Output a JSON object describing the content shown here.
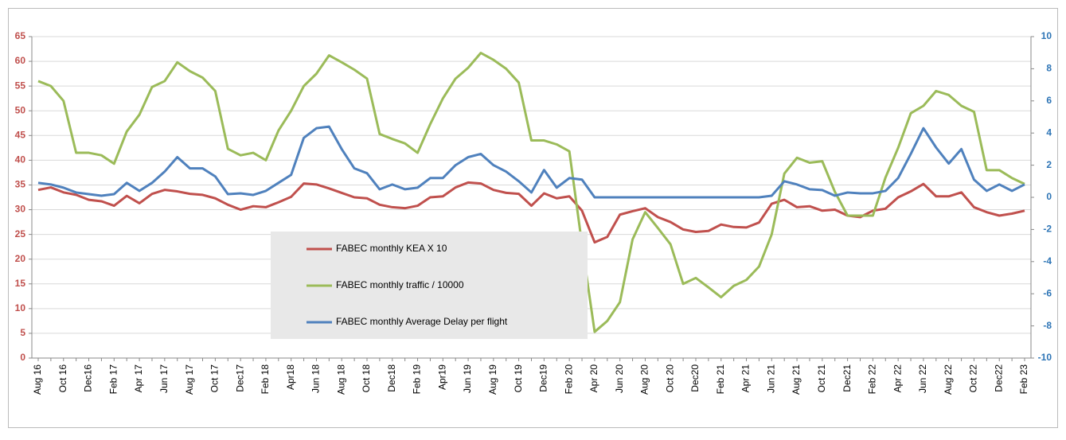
{
  "chart_data": {
    "type": "line",
    "categories": [
      "Aug 16",
      null,
      "Oct 16",
      null,
      "Dec16",
      null,
      "Feb 17",
      null,
      "Apr 17",
      null,
      "Jun 17",
      null,
      "Aug 17",
      null,
      "Oct 17",
      null,
      "Dec17",
      null,
      "Feb 18",
      null,
      "Apr18",
      null,
      "Jun 18",
      null,
      "Aug 18",
      null,
      "Oct 18",
      null,
      "Dec18",
      null,
      "Feb 19",
      null,
      "Apr19",
      null,
      "Jun 19",
      null,
      "Aug 19",
      null,
      "Oct 19",
      null,
      "Dec19",
      null,
      "Feb 20",
      null,
      "Apr 20",
      null,
      "Jun 20",
      null,
      "Aug 20",
      null,
      "Oct 20",
      null,
      "Dec20",
      null,
      "Feb 21",
      null,
      "Apr 21",
      null,
      "Jun 21",
      null,
      "Aug 21",
      null,
      "Oct 21",
      null,
      "Dec21",
      null,
      "Feb 22",
      null,
      "Apr 22",
      null,
      "Jun 22",
      null,
      "Aug 22",
      null,
      "Oct 22",
      null,
      "Dec22",
      null,
      "Feb 23"
    ],
    "series": [
      {
        "name": "FABEC monthly KEA X 10",
        "color": "#c0504d",
        "axis": "y",
        "values": [
          34,
          34.5,
          33.5,
          33,
          32,
          31.7,
          30.8,
          32.8,
          31.3,
          33.2,
          34,
          33.7,
          33.2,
          33,
          32.3,
          31,
          30,
          30.7,
          30.5,
          31.5,
          32.6,
          35.3,
          35.1,
          34.3,
          33.4,
          32.5,
          32.3,
          31,
          30.5,
          30.3,
          30.8,
          32.5,
          32.7,
          34.5,
          35.5,
          35.3,
          34,
          33.4,
          33.2,
          30.8,
          33.3,
          32.3,
          32.7,
          29.8,
          23.4,
          24.5,
          29,
          29.7,
          30.3,
          28.5,
          27.5,
          26,
          25.5,
          25.7,
          27,
          26.5,
          26.4,
          27.4,
          31.2,
          32,
          30.5,
          30.7,
          29.8,
          30,
          28.8,
          28.5,
          29.8,
          30.2,
          32.5,
          33.7,
          35.2,
          32.7,
          32.7,
          33.5,
          30.5,
          29.5,
          28.8,
          29.2,
          29.8
        ]
      },
      {
        "name": "FABEC monthly traffic / 10000",
        "color": "#9bbb59",
        "axis": "y",
        "values": [
          56,
          55,
          52,
          41.5,
          41.5,
          41,
          39.3,
          45.8,
          49.2,
          54.8,
          56,
          59.8,
          58,
          56.7,
          54,
          42.3,
          41,
          41.5,
          40,
          46,
          50,
          55,
          57.5,
          61.2,
          59.8,
          58.3,
          56.5,
          45.3,
          44.3,
          43.4,
          41.5,
          47.3,
          52.5,
          56.5,
          58.7,
          61.7,
          60.3,
          58.5,
          55.7,
          44,
          44,
          43.2,
          41.8,
          23,
          5.3,
          7.5,
          11.3,
          24,
          29.5,
          26.3,
          23,
          15,
          16.2,
          14.3,
          12.3,
          14.6,
          15.8,
          18.5,
          25,
          37.3,
          40.5,
          39.5,
          39.8,
          33.6,
          28.8,
          28.8,
          28.8,
          36.5,
          42.5,
          49.5,
          51,
          54,
          53.2,
          51,
          49.8,
          38,
          38,
          36.4,
          35.2
        ]
      },
      {
        "name": "FABEC monthly Average Delay per flight",
        "color": "#4f81bd",
        "axis": "y2",
        "values": [
          0.9,
          0.8,
          0.6,
          0.3,
          0.2,
          0.1,
          0.2,
          0.9,
          0.4,
          0.9,
          1.6,
          2.5,
          1.8,
          1.8,
          1.3,
          0.2,
          0.25,
          0.15,
          0.4,
          0.9,
          1.4,
          3.7,
          4.3,
          4.4,
          3.0,
          1.8,
          1.5,
          0.5,
          0.8,
          0.5,
          0.6,
          1.2,
          1.2,
          2.0,
          2.5,
          2.7,
          2.0,
          1.6,
          1.0,
          0.3,
          1.7,
          0.6,
          1.2,
          1.1,
          0,
          0,
          0,
          0,
          0,
          0,
          0,
          0,
          0,
          0,
          0,
          0,
          0,
          0,
          0.1,
          1.0,
          0.8,
          0.5,
          0.45,
          0.1,
          0.3,
          0.25,
          0.25,
          0.4,
          1.2,
          2.7,
          4.3,
          3.1,
          2.1,
          3.0,
          1.1,
          0.4,
          0.8,
          0.4,
          0.8
        ]
      }
    ],
    "ylim": [
      0,
      65
    ],
    "yticks": [
      0,
      5,
      10,
      15,
      20,
      25,
      30,
      35,
      40,
      45,
      50,
      55,
      60,
      65
    ],
    "y2lim": [
      -10,
      10
    ],
    "y2ticks": [
      -10,
      -8,
      -6,
      -4,
      -2,
      0,
      2,
      4,
      6,
      8,
      10
    ],
    "ytick_color": "#c0504d",
    "y2tick_color": "#2e75b6",
    "grid": true,
    "legend_position": "center"
  }
}
